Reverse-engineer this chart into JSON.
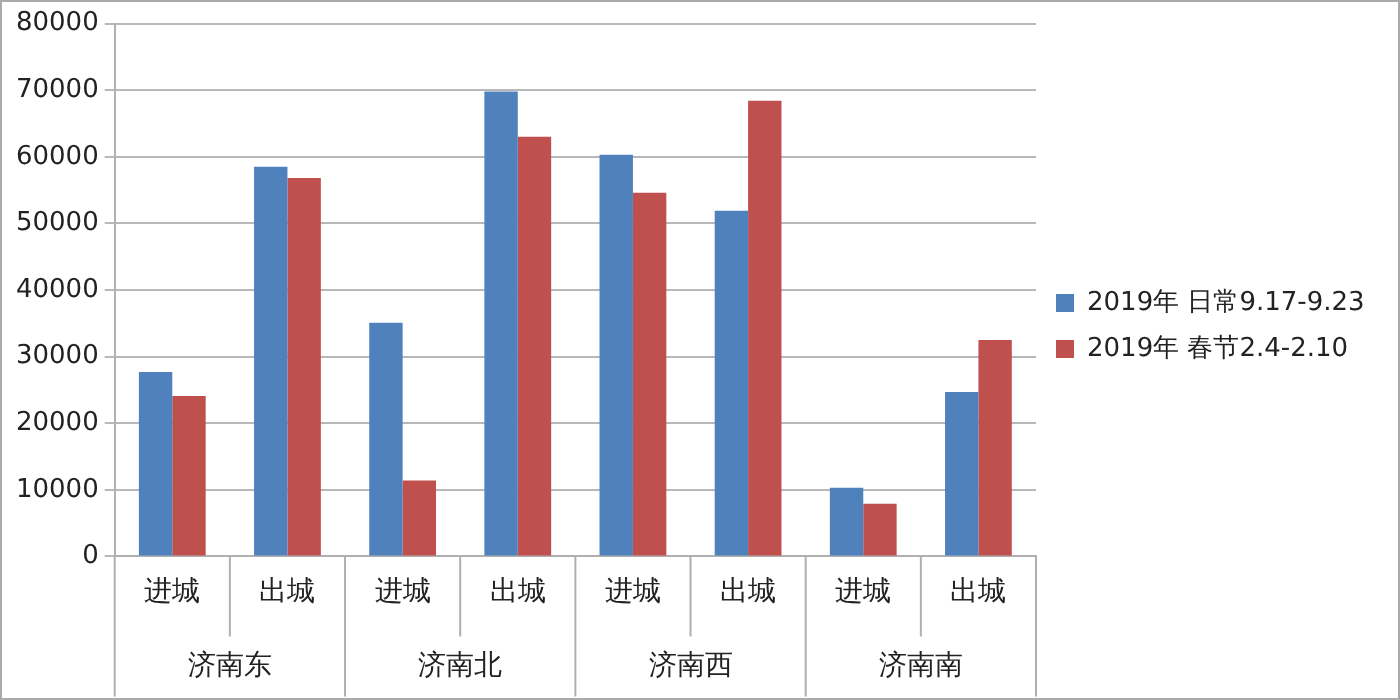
{
  "chart_data": {
    "type": "bar",
    "categories": [
      "进城",
      "出城",
      "进城",
      "出城",
      "进城",
      "出城",
      "进城",
      "出城"
    ],
    "series": [
      {
        "name": "2019年 日常9.17-9.23",
        "color": "#4f81bd",
        "values": [
          27700,
          58500,
          35100,
          69800,
          60300,
          51900,
          10300,
          24700
        ]
      },
      {
        "name": "2019年 春节2.4-2.10",
        "color": "#c0504d",
        "values": [
          24100,
          56800,
          11400,
          63000,
          54600,
          68400,
          7900,
          32500
        ]
      }
    ],
    "annotations": [
      "济南东",
      "济南北",
      "济南西",
      "济南南"
    ],
    "ylim": [
      0,
      80000
    ],
    "yticks": [
      0,
      10000,
      20000,
      30000,
      40000,
      50000,
      60000,
      70000,
      80000
    ],
    "grid": "y",
    "legend": "right"
  }
}
